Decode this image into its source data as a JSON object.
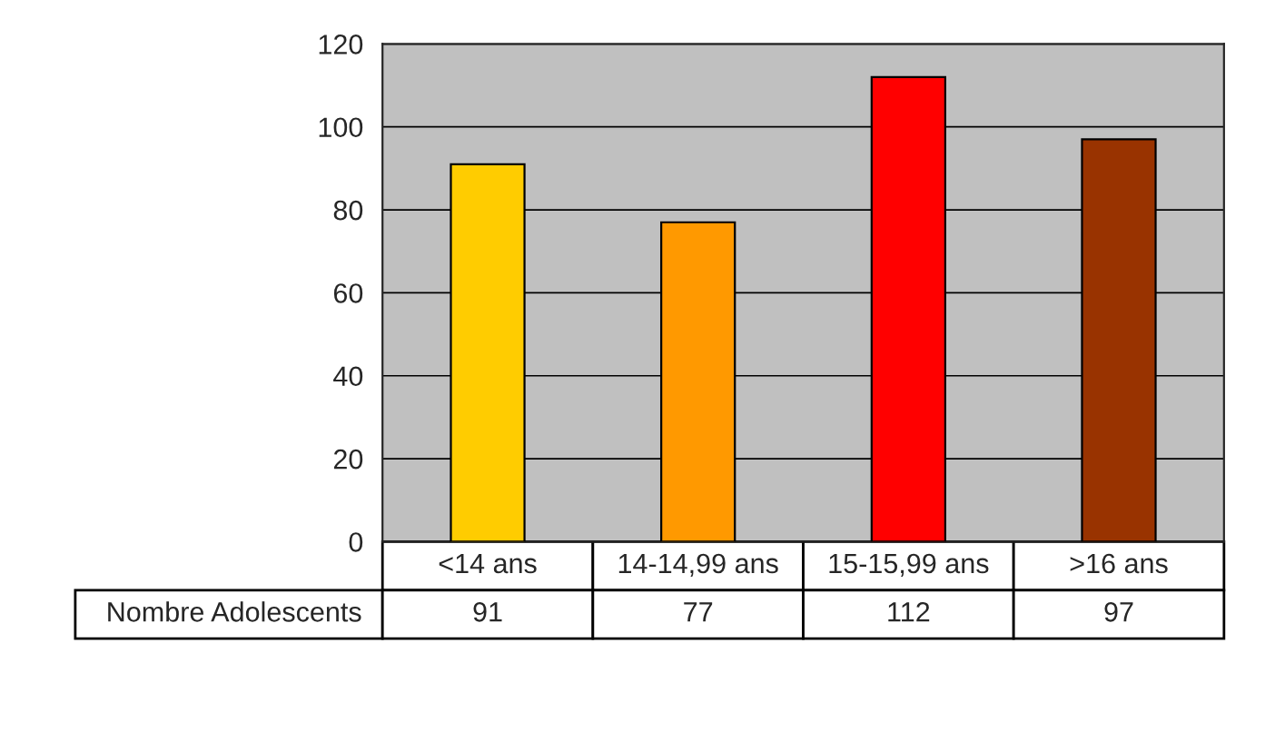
{
  "chart_data": {
    "type": "bar",
    "categories": [
      "<14 ans",
      "14-14,99 ans",
      "15-15,99 ans",
      ">16 ans"
    ],
    "series": [
      {
        "name": "Nombre Adolescents",
        "values": [
          91,
          77,
          112,
          97
        ],
        "colors": [
          "#ffcc00",
          "#ff9900",
          "#ff0000",
          "#993300"
        ]
      }
    ],
    "ylim": [
      0,
      120
    ],
    "yticks": [
      0,
      20,
      40,
      60,
      80,
      100,
      120
    ],
    "grid": "y",
    "data_labels": true,
    "legend": false
  }
}
